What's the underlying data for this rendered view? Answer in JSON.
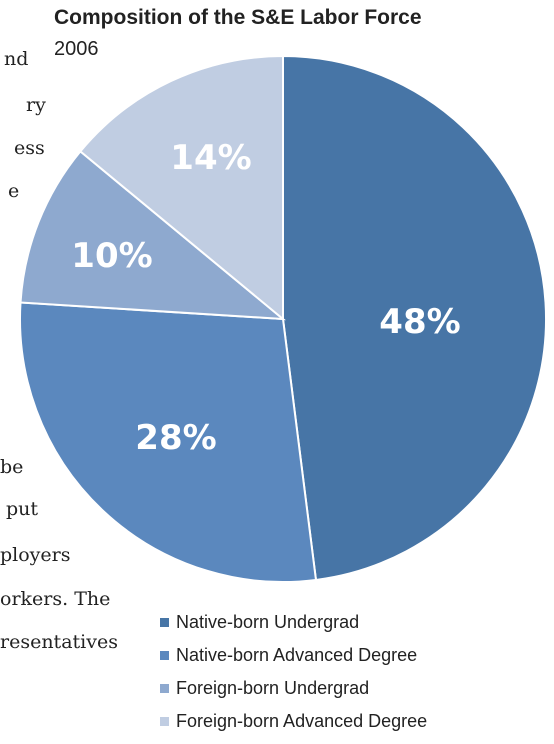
{
  "background_text": [
    "nd",
    "ry",
    "ess",
    "e",
    "be",
    "put",
    "ployers",
    "orkers.  The",
    "resentatives"
  ],
  "chart_data": {
    "type": "pie",
    "title": "Composition of the S&E Labor Force",
    "subtitle": "2006",
    "slices": [
      {
        "name": "Native-born Undergrad",
        "value": 48,
        "label": "48%",
        "color": "#4775a6"
      },
      {
        "name": "Native-born Advanced Degree",
        "value": 28,
        "label": "28%",
        "color": "#5b88be"
      },
      {
        "name": "Foreign-born Undergrad",
        "value": 10,
        "label": "10%",
        "color": "#8ea9cf"
      },
      {
        "name": "Foreign-born Advanced Degree",
        "value": 14,
        "label": "14%",
        "color": "#c0cde2"
      }
    ],
    "legend_position": "bottom",
    "slice_border_color": "#ffffff"
  }
}
